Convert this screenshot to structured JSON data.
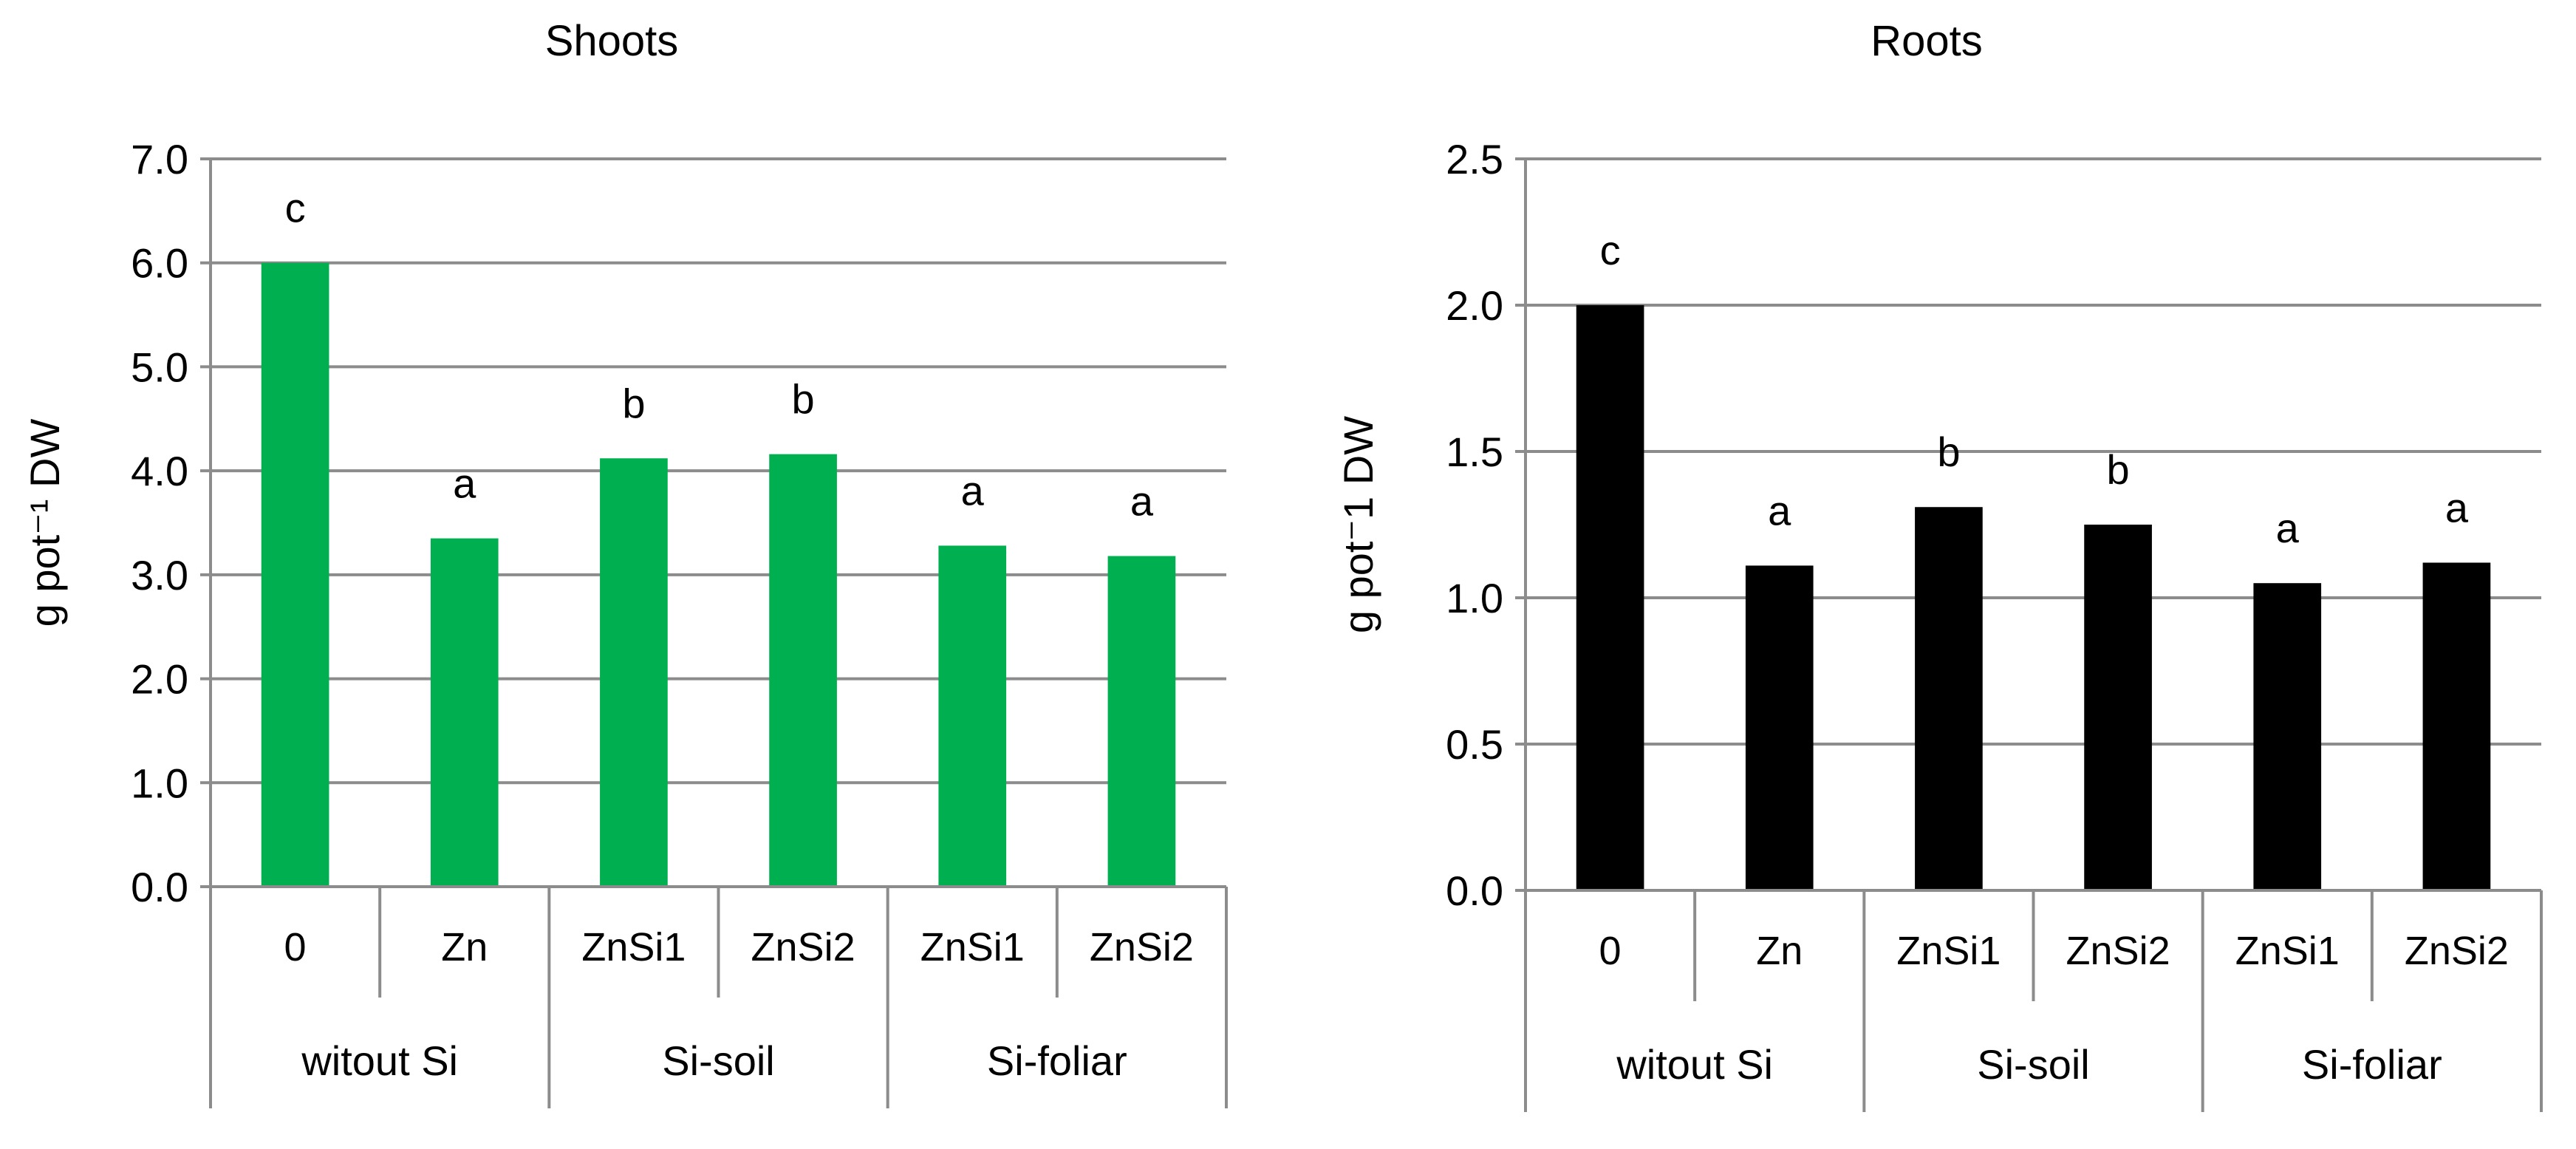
{
  "chart_data": [
    {
      "type": "bar",
      "title": "Shoots",
      "ylabel": "g pot⁻¹ DW",
      "xlabel": "",
      "ylim": [
        0,
        7.0
      ],
      "ytick_step": 1.0,
      "ytick_decimals": 1,
      "grid": true,
      "categories": [
        "0",
        "Zn",
        "ZnSi1",
        "ZnSi2",
        "ZnSi1",
        "ZnSi2"
      ],
      "groups": [
        {
          "label": "witout Si",
          "span": 2
        },
        {
          "label": "Si-soil",
          "span": 2
        },
        {
          "label": "Si-foliar",
          "span": 2
        }
      ],
      "values": [
        6.0,
        3.35,
        4.12,
        4.16,
        3.28,
        3.18
      ],
      "bar_labels": [
        "c",
        "a",
        "b",
        "b",
        "a",
        "a"
      ],
      "color": "#00b050"
    },
    {
      "type": "bar",
      "title": "Roots",
      "ylabel": "g pot⁻1 DW",
      "xlabel": "",
      "ylim": [
        0,
        2.5
      ],
      "ytick_step": 0.5,
      "ytick_decimals": 1,
      "grid": true,
      "categories": [
        "0",
        "Zn",
        "ZnSi1",
        "ZnSi2",
        "ZnSi1",
        "ZnSi2"
      ],
      "groups": [
        {
          "label": "witout Si",
          "span": 2
        },
        {
          "label": "Si-soil",
          "span": 2
        },
        {
          "label": "Si-foliar",
          "span": 2
        }
      ],
      "values": [
        2.0,
        1.11,
        1.31,
        1.25,
        1.05,
        1.12
      ],
      "bar_labels": [
        "c",
        "a",
        "b",
        "b",
        "a",
        "a"
      ],
      "color": "#000000"
    }
  ]
}
